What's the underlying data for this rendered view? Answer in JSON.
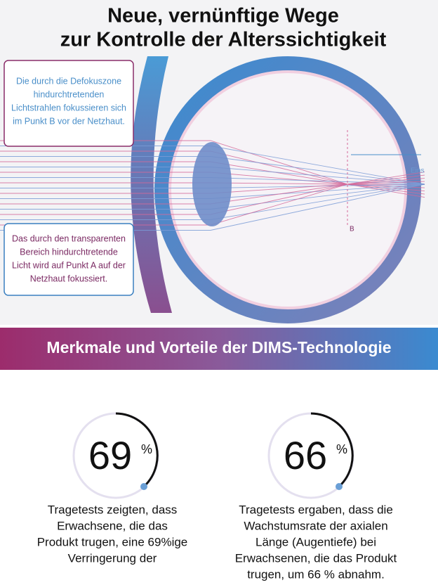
{
  "header": {
    "title_lines": [
      "Neue, vernünftige Wege",
      "zur Kontrolle der Alterssichtigkeit"
    ]
  },
  "diagram": {
    "note_top": [
      "Die durch die Defokuszone",
      "hindurchtretenden",
      "Lichtstrahlen fokussieren sich",
      "im Punkt B vor der Netzhaut."
    ],
    "note_bottom": [
      "Das durch den transparenten",
      "Bereich hindurchtretende",
      "Licht wird auf Punkt A auf der",
      "Netzhaut fokussiert."
    ],
    "label_a": "Eins",
    "label_b": "B"
  },
  "banner": {
    "title": "Merkmale und Vorteile der DIMS-Technologie"
  },
  "stats": [
    {
      "value": 69,
      "unit": "%",
      "text": [
        "Tragetests zeigten, dass",
        "Erwachsene, die das",
        "Produkt trugen, eine 69%ige",
        "Verringerung der"
      ]
    },
    {
      "value": 66,
      "unit": "%",
      "text": [
        "Tragetests ergaben, dass die",
        "Wachstumsrate der axialen",
        "Länge (Augentiefe) bei",
        "Erwachsenen, die das Produkt",
        "trugen, um 66 % abnahm."
      ]
    }
  ]
}
